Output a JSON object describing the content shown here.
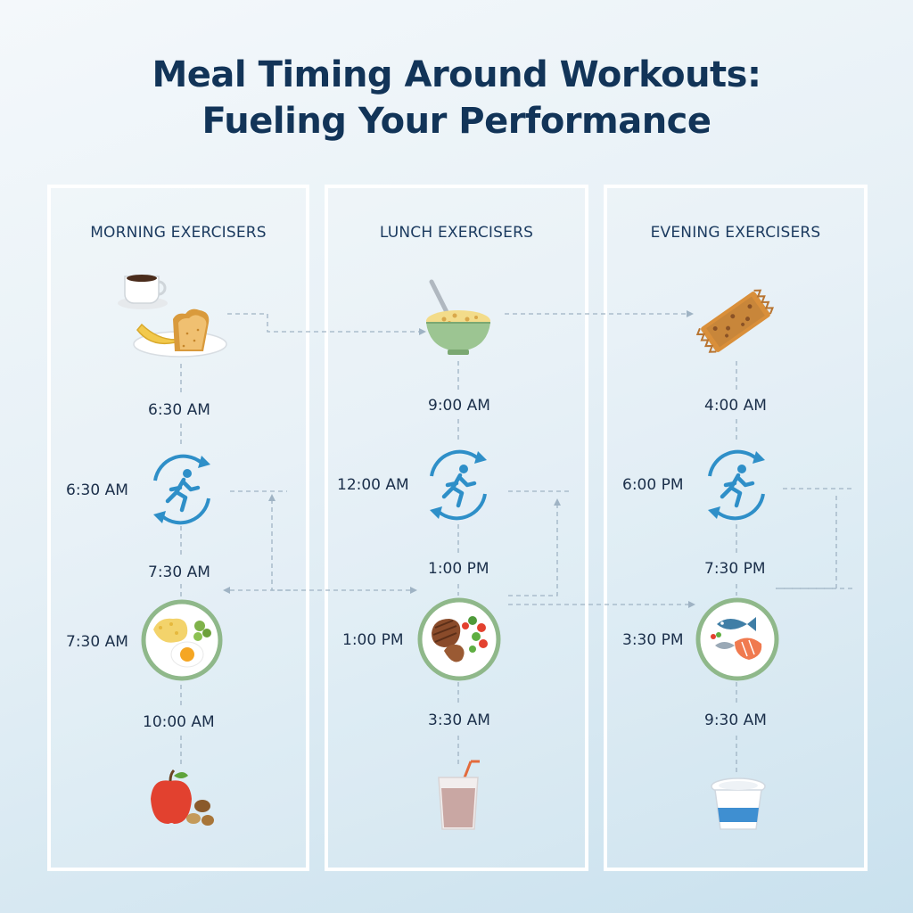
{
  "title": {
    "line1": "Meal Timing Around Workouts:",
    "line2": "Fueling Your Performance"
  },
  "columns": [
    {
      "heading": "MORNING EXERCISERS",
      "pre_meal_icon": "coffee-banana-toast-icon",
      "pre_meal_time": "6:30 AM",
      "workout_time": "6:30 AM",
      "post_workout_time": "7:30 AM",
      "post_meal_icon": "eggs-plate-icon",
      "post_meal_time": "7:30 AM",
      "snack_time": "10:00 AM",
      "snack_icon": "apple-nuts-icon"
    },
    {
      "heading": "LUNCH EXERCISERS",
      "pre_meal_icon": "oatmeal-bowl-icon",
      "pre_meal_time": "9:00 AM",
      "workout_time": "12:00 AM",
      "post_workout_time": "1:00 PM",
      "post_meal_icon": "steak-salad-plate-icon",
      "post_meal_time": "1:00 PM",
      "snack_time": "3:30 AM",
      "snack_icon": "smoothie-glass-icon"
    },
    {
      "heading": "EVENING EXERCISERS",
      "pre_meal_icon": "granola-bar-icon",
      "pre_meal_time": "4:00 AM",
      "workout_time": "6:00 PM",
      "post_workout_time": "7:30 PM",
      "post_meal_icon": "fish-plate-icon",
      "post_meal_time": "3:30 PM",
      "snack_time": "9:30 AM",
      "snack_icon": "yogurt-cup-icon"
    }
  ],
  "colors": {
    "workout_icon": "#2e8fc8",
    "plate_ring": "#8fb88a",
    "title": "#123458"
  }
}
